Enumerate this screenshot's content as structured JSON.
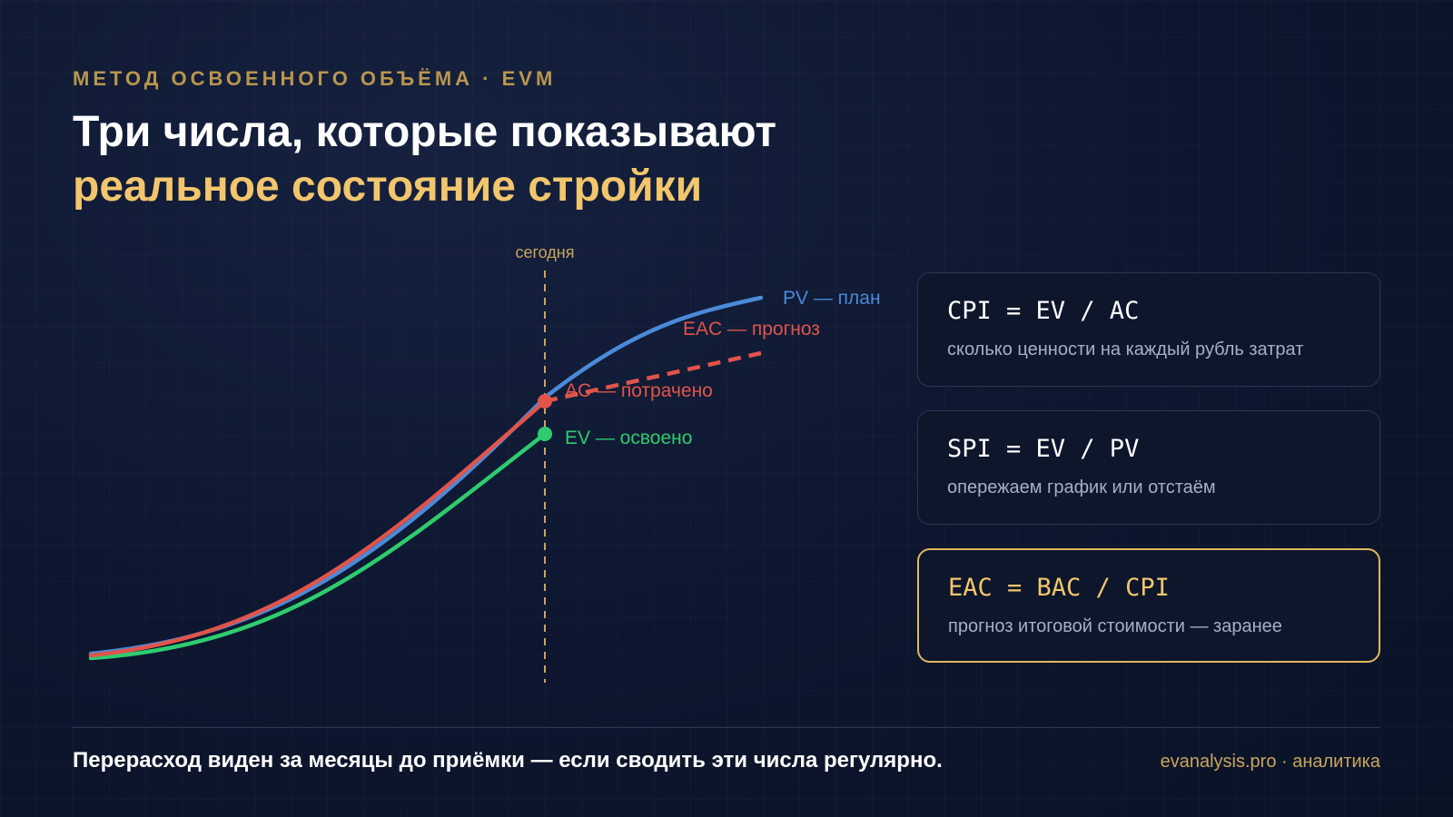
{
  "header": {
    "eyebrow": "МЕТОД ОСВОЕННОГО ОБЪЁМА · EVM",
    "title_line1": "Три числа, которые показывают",
    "title_line2": "реальное состояние стройки"
  },
  "chart": {
    "today_label": "сегодня",
    "series_labels": {
      "pv": "PV — план",
      "eac": "EAC — прогноз",
      "ac": "AC — потрачено",
      "ev": "EV — освоено"
    },
    "colors": {
      "pv": "#4a8ad8",
      "ac": "#e0544b",
      "eac": "#e0544b",
      "ev": "#2ecc6e",
      "today": "#c9a55e"
    }
  },
  "chart_data": {
    "type": "line",
    "series": [
      {
        "name": "PV — план",
        "shape": "S-curve, highest at end"
      },
      {
        "name": "AC — потрачено",
        "shape": "S-curve up to today, above EV"
      },
      {
        "name": "EV — освоено",
        "shape": "S-curve up to today, lowest"
      },
      {
        "name": "EAC — прогноз",
        "shape": "dashed straight extension from today"
      }
    ],
    "marker": "сегодня"
  },
  "cards": [
    {
      "formula": "CPI = EV / AC",
      "desc": "сколько ценности на каждый рубль затрат",
      "highlighted": false
    },
    {
      "formula": "SPI = EV / PV",
      "desc": "опережаем график или отстаём",
      "highlighted": false
    },
    {
      "formula": "EAC = BAC / CPI",
      "desc": "прогноз итоговой стоимости — заранее",
      "highlighted": true
    }
  ],
  "footer": {
    "note": "Перерасход виден за месяцы до приёмки — если сводить эти числа регулярно.",
    "brand": "evanalysis.pro · аналитика"
  }
}
